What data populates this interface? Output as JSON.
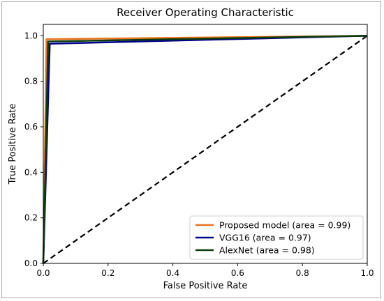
{
  "chart_data": {
    "type": "line",
    "title": "Receiver Operating Characteristic",
    "xlabel": "False Positive Rate",
    "ylabel": "True Positive Rate",
    "xlim": [
      0,
      1
    ],
    "ylim": [
      0,
      1.05
    ],
    "xticks": [
      {
        "value": 0.0,
        "label": "0.0"
      },
      {
        "value": 0.2,
        "label": "0.2"
      },
      {
        "value": 0.4,
        "label": "0.4"
      },
      {
        "value": 0.6,
        "label": "0.6"
      },
      {
        "value": 0.8,
        "label": "0.8"
      },
      {
        "value": 1.0,
        "label": "1.0"
      }
    ],
    "yticks": [
      {
        "value": 0.0,
        "label": "0.0"
      },
      {
        "value": 0.2,
        "label": "0.2"
      },
      {
        "value": 0.4,
        "label": "0.4"
      },
      {
        "value": 0.6,
        "label": "0.6"
      },
      {
        "value": 0.8,
        "label": "0.8"
      },
      {
        "value": 1.0,
        "label": "1.0"
      }
    ],
    "grid": false,
    "legend_position": "lower-right",
    "series": [
      {
        "name": "Proposed model (area = 0.99)",
        "color": "#e8711a",
        "x": [
          0,
          0.01,
          1.0
        ],
        "y": [
          0,
          0.985,
          1.0
        ]
      },
      {
        "name": "VGG16 (area = 0.97)",
        "color": "#00008b",
        "x": [
          0,
          0.02,
          1.0
        ],
        "y": [
          0,
          0.965,
          1.0
        ]
      },
      {
        "name": "AlexNet (area = 0.98)",
        "color": "#0b3d0b",
        "x": [
          0,
          0.015,
          1.0
        ],
        "y": [
          0,
          0.975,
          1.0
        ]
      }
    ],
    "reference_line": {
      "style": "dashed",
      "color": "#000000",
      "x": [
        0,
        1
      ],
      "y": [
        0,
        1
      ]
    }
  }
}
